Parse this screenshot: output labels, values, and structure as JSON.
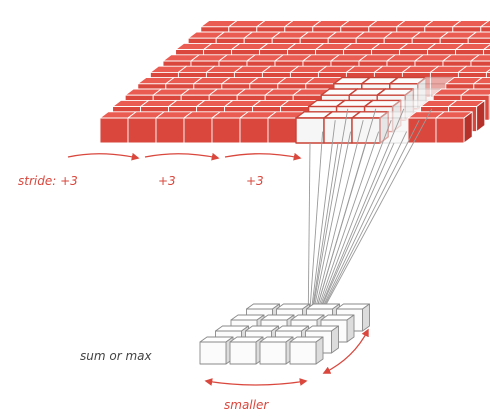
{
  "labels": {
    "stride": "stride: +3",
    "step2": "+3",
    "step3": "+3",
    "pool": "sum or max",
    "smaller": "smaller"
  },
  "colors": {
    "front": "#d9473d",
    "top": "#ea5b51",
    "side": "#b53129",
    "edge": "#ffffff",
    "window_front": "#f6f6f6",
    "window_top": "#fcfcfc",
    "window_side": "#d4d4d4",
    "window_edge": "#c94237",
    "out_front": "#fbfbfb",
    "out_top": "#ffffff",
    "out_side": "#dcdcdc",
    "out_edge": "#8a8a8a",
    "lines": "#9a9a9a",
    "arrow": "#d9473d"
  },
  "grid": {
    "rows": 9,
    "cols": 13
  },
  "window": {
    "rows": 4,
    "cols": 4
  },
  "output": {
    "rows": 4,
    "cols": 4
  }
}
